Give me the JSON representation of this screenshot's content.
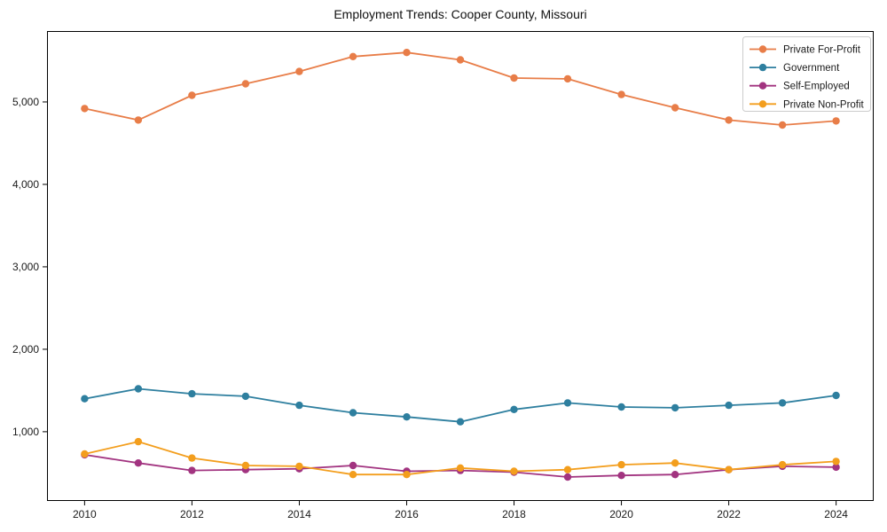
{
  "chart_data": {
    "type": "line",
    "title": "Employment Trends: Cooper County, Missouri",
    "xlabel": "",
    "ylabel": "",
    "x": [
      2010,
      2011,
      2012,
      2013,
      2014,
      2015,
      2016,
      2017,
      2018,
      2019,
      2020,
      2021,
      2022,
      2023,
      2024
    ],
    "series": [
      {
        "name": "Private For-Profit",
        "color": "#e87d48",
        "values": [
          4920,
          4780,
          5080,
          5220,
          5370,
          5550,
          5600,
          5510,
          5290,
          5280,
          5090,
          4930,
          4780,
          4720,
          4770
        ]
      },
      {
        "name": "Government",
        "color": "#2e7f9f",
        "values": [
          1400,
          1520,
          1460,
          1430,
          1320,
          1230,
          1180,
          1120,
          1270,
          1350,
          1300,
          1290,
          1320,
          1350,
          1440
        ]
      },
      {
        "name": "Self-Employed",
        "color": "#a23480",
        "values": [
          720,
          620,
          530,
          540,
          550,
          590,
          520,
          530,
          510,
          450,
          470,
          480,
          540,
          580,
          570
        ]
      },
      {
        "name": "Private Non-Profit",
        "color": "#f39e1d",
        "values": [
          730,
          880,
          680,
          590,
          580,
          480,
          480,
          560,
          520,
          540,
          600,
          620,
          540,
          600,
          640
        ]
      }
    ],
    "xlim": [
      2009.3,
      2024.7
    ],
    "ylim": [
      160,
      5860
    ],
    "x_ticks": [
      2010,
      2012,
      2014,
      2016,
      2018,
      2020,
      2022,
      2024
    ],
    "y_ticks": [
      1000,
      2000,
      3000,
      4000,
      5000
    ],
    "y_tick_labels": [
      "1,000",
      "2,000",
      "3,000",
      "4,000",
      "5,000"
    ],
    "legend_position": "upper right",
    "grid": false,
    "marker": "circle",
    "axis_color": "#000000"
  }
}
